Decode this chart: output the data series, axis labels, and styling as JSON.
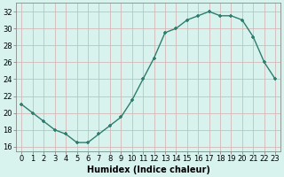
{
  "x": [
    0,
    1,
    2,
    3,
    4,
    5,
    6,
    7,
    8,
    9,
    10,
    11,
    12,
    13,
    14,
    15,
    16,
    17,
    18,
    19,
    20,
    21,
    22,
    23
  ],
  "y": [
    21.0,
    20.0,
    19.0,
    18.0,
    17.5,
    16.5,
    16.5,
    17.5,
    18.5,
    19.5,
    21.5,
    24.0,
    26.5,
    29.5,
    30.0,
    31.0,
    31.5,
    32.0,
    31.5,
    31.5,
    31.0,
    29.0,
    26.0,
    24.0
  ],
  "xlabel": "Humidex (Indice chaleur)",
  "ylabel": "",
  "ylim": [
    15.5,
    33.0
  ],
  "xlim": [
    -0.5,
    23.5
  ],
  "yticks": [
    16,
    18,
    20,
    22,
    24,
    26,
    28,
    30,
    32
  ],
  "xticks": [
    0,
    1,
    2,
    3,
    4,
    5,
    6,
    7,
    8,
    9,
    10,
    11,
    12,
    13,
    14,
    15,
    16,
    17,
    18,
    19,
    20,
    21,
    22,
    23
  ],
  "line_color": "#2e7d6e",
  "marker_color": "#2e7d6e",
  "bg_color": "#d8f2ee",
  "grid_color": "#d4b8b8",
  "spine_color": "#888888",
  "font_color": "#000000",
  "tick_fontsize": 6.0,
  "xlabel_fontsize": 7.0,
  "line_width": 1.0,
  "marker_size": 3.5
}
